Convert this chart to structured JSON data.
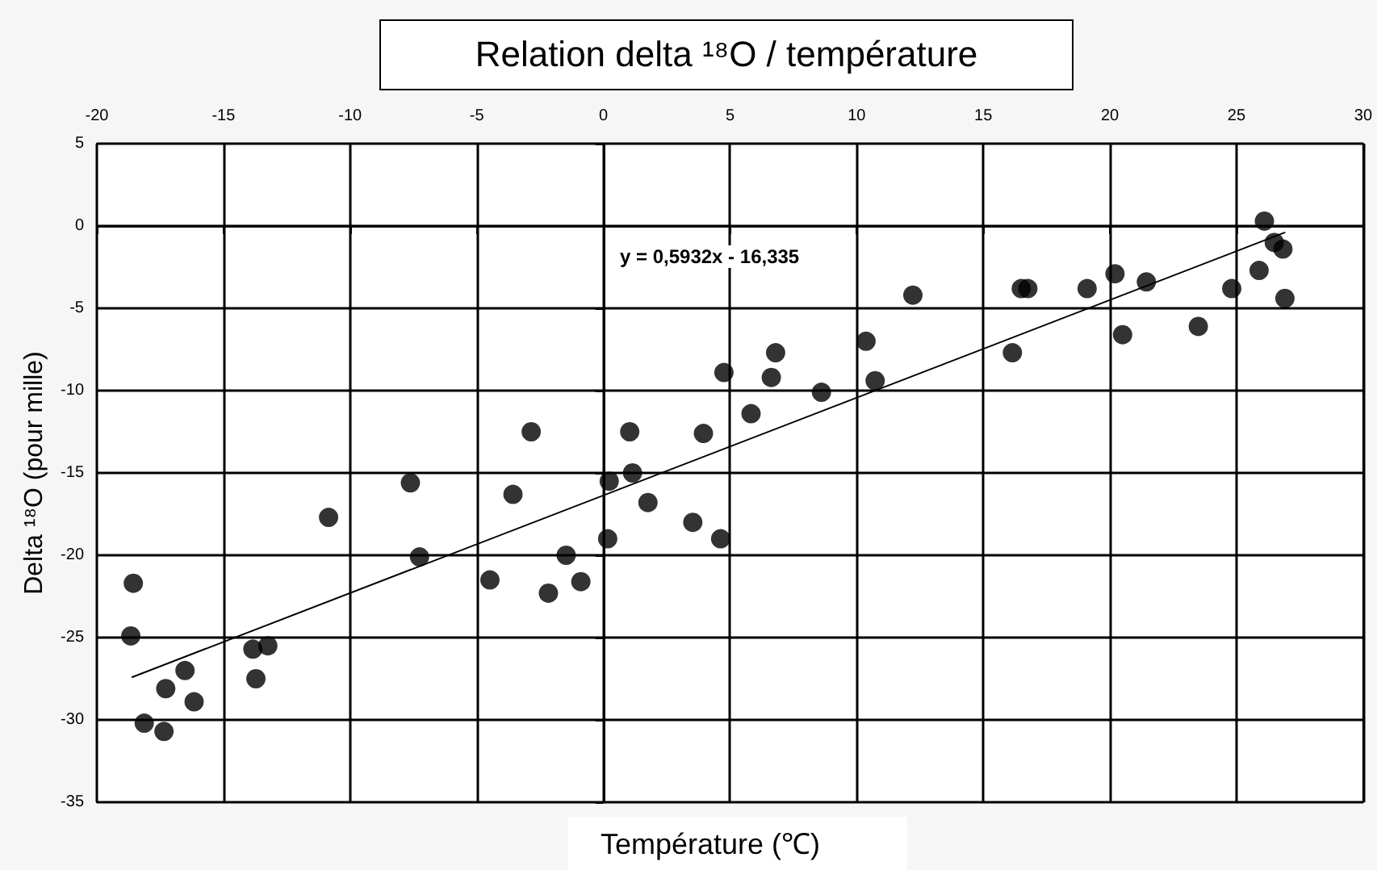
{
  "chart_data": {
    "type": "scatter",
    "title": "Relation delta ¹⁸O / température",
    "xlabel": "Température (℃)",
    "ylabel": "Delta ¹⁸O (pour mille)",
    "annotations": [
      "y = 0,5932x - 16,335"
    ],
    "series": [
      {
        "color": "#000000",
        "x": [
          -18.56,
          -18.66,
          -17.28,
          -18.13,
          -17.35,
          -16.52,
          -16.16,
          -13.84,
          -13.25,
          -13.72,
          -10.85,
          -7.62,
          -7.26,
          -4.48,
          -3.57,
          -2.85,
          -2.17,
          -1.47,
          -0.89,
          0.23,
          0.17,
          1.04,
          1.15,
          1.76,
          3.53,
          3.95,
          4.76,
          4.63,
          5.83,
          6.63,
          6.8,
          8.61,
          10.37,
          10.73,
          12.22,
          16.15,
          16.5,
          16.76,
          19.1,
          20.2,
          20.5,
          21.44,
          23.49,
          24.81,
          25.89,
          26.1,
          26.49,
          26.83,
          26.91
        ],
        "values": [
          -21.7,
          -24.9,
          -28.1,
          -30.2,
          -30.7,
          -27.0,
          -28.9,
          -25.7,
          -25.5,
          -27.5,
          -17.7,
          -15.6,
          -20.1,
          -21.5,
          -16.3,
          -12.5,
          -22.3,
          -20.0,
          -21.6,
          -15.5,
          -19.0,
          -12.5,
          -15.0,
          -16.8,
          -18.0,
          -12.6,
          -8.9,
          -19.0,
          -11.4,
          -9.2,
          -7.7,
          -10.1,
          -7.0,
          -9.4,
          -4.2,
          -7.7,
          -3.8,
          -3.8,
          -3.8,
          -2.9,
          -6.6,
          -3.4,
          -6.1,
          -3.8,
          -2.7,
          0.3,
          -1.0,
          -1.4,
          -4.4
        ]
      },
      {
        "type": "line",
        "color": "#000000",
        "marker": "none",
        "line_style": "solid",
        "x": [
          -18.6,
          26.9
        ],
        "values": [
          -27.4,
          -0.4
        ]
      }
    ],
    "xlim": [
      -20,
      30
    ],
    "xticks": [
      -20,
      -15,
      -10,
      -5,
      0,
      5,
      10,
      15,
      20,
      25,
      30
    ],
    "ylim": [
      -35,
      5
    ],
    "yticks": [
      5,
      0,
      -5,
      -10,
      -15,
      -20,
      -25,
      -30,
      -35
    ],
    "grid": true,
    "marker": "circle"
  }
}
